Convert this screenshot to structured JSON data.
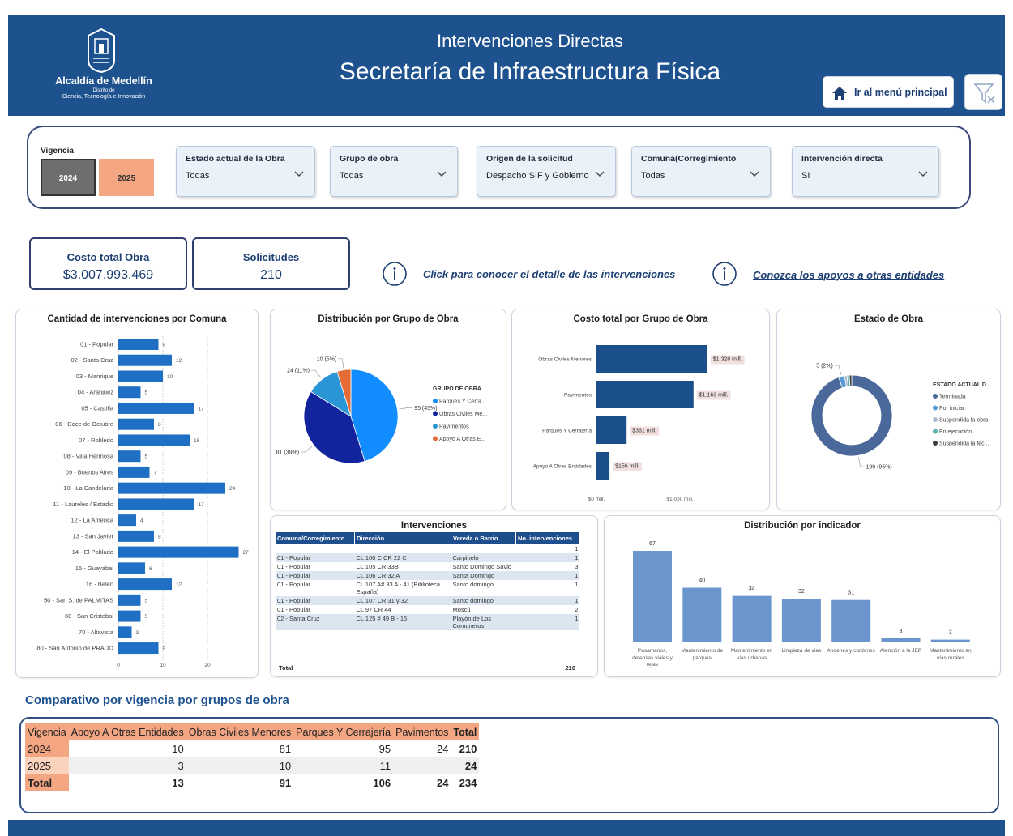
{
  "header": {
    "logo_title": "Alcaldía de Medellín",
    "logo_sub1": "Distrito de",
    "logo_sub2": "Ciencia, Tecnología e Innovación",
    "title": "Intervenciones Directas",
    "subtitle": "Secretaría de Infraestructura Física",
    "button": "Ir al menú principal"
  },
  "filters": {
    "vigencia": {
      "label": "Vigencia",
      "options": [
        "2024",
        "2025"
      ]
    },
    "dropdowns": [
      {
        "label": "Estado actual de la Obra",
        "selected": "Todas"
      },
      {
        "label": "Grupo de obra",
        "selected": "Todas"
      },
      {
        "label": "Origen de la solicitud",
        "selected": "Despacho SIF y Gobierno"
      },
      {
        "label": "Comuna(Corregimiento",
        "selected": "Todas"
      },
      {
        "label": "Intervención directa",
        "selected": "SI"
      }
    ]
  },
  "kpis": [
    {
      "label": "Costo total Obra",
      "value": "$3.007.993.469"
    },
    {
      "label": "Solicitudes",
      "value": "210"
    }
  ],
  "links": [
    "Click para conocer el detalle de las intervenciones",
    "Conozca los apoyos a otras entidades"
  ],
  "chart_data": [
    {
      "type": "bar",
      "horizontal": true,
      "title": "Cantidad de intervenciones por Comuna",
      "categories": [
        "01 - Popular",
        "02 - Santa Cruz",
        "03 - Manrique",
        "04 - Aranjuez",
        "05 - Castilla",
        "06 - Doce de Octubre",
        "07 - Robledo",
        "08 - Villa Hermosa",
        "09 - Buenos Aires",
        "10 - La Candelaria",
        "11 - Laureles / Estadio",
        "12 - La América",
        "13 - San Javier",
        "14 - El Poblado",
        "15 - Guayabal",
        "16 - Belén",
        "50 - San S. de PALMITAS",
        "60 - San Cristobal",
        "70 - Altavista",
        "80 - San Antonio de PRADO"
      ],
      "values": [
        9,
        12,
        10,
        5,
        17,
        8,
        16,
        5,
        7,
        24,
        17,
        4,
        8,
        27,
        6,
        12,
        5,
        5,
        3,
        9
      ],
      "color": "#1f6fc5",
      "xlim": [
        0,
        28
      ],
      "xticks": [
        0,
        10,
        20
      ],
      "grid": true
    },
    {
      "type": "pie",
      "title": "Distribución por Grupo de Obra",
      "legend_title": "GRUPO DE OBRA",
      "categories": [
        "Parques Y Cerra...",
        "Obras Civiles Me...",
        "Pavimentos",
        "Apoyo A Otras E..."
      ],
      "values": [
        95,
        81,
        24,
        10
      ],
      "value_labels": [
        "95 (45%)",
        "81 (39%)",
        "24 (11%)",
        "10 (5%)"
      ],
      "colors": [
        "#118dff",
        "#12239e",
        "#2b96d6",
        "#e66c37"
      ]
    },
    {
      "type": "bar",
      "horizontal": true,
      "title": "Costo total por Grupo de Obra",
      "categories": [
        "Obras Civiles Menores",
        "Pavimentos",
        "Parques Y Cerrajería",
        "Apoyo A Otras Entidades"
      ],
      "values": [
        1328,
        1163,
        361,
        156
      ],
      "value_labels": [
        "$1.328 mill.",
        "$1.163 mill.",
        "$361 mill.",
        "$156 mill."
      ],
      "color": "#1b4f8a",
      "xlim": [
        0,
        1500
      ],
      "xticks": [
        {
          "value": 0,
          "label": "$0 mill."
        },
        {
          "value": 1000,
          "label": "$1.000 mill."
        }
      ],
      "grid": false
    },
    {
      "type": "donut",
      "title": "Estado de Obra",
      "legend_title": "ESTADO ACTUAL D...",
      "categories": [
        "Terminada",
        "Por iniciar",
        "Suspendida la obra",
        "En ejecución",
        "Suspendida la fec..."
      ],
      "values": [
        199,
        5,
        2,
        2,
        2
      ],
      "value_labels": [
        "199 (95%)",
        "5 (2%)",
        null,
        null,
        null
      ],
      "colors": [
        "#4a6899",
        "#5b9bd5",
        "#a9bccf",
        "#5fb3b0",
        "#3b3b3b"
      ]
    },
    {
      "type": "bar",
      "horizontal": false,
      "title": "Distribución por indicador",
      "categories": [
        "Pasamanos, defensas viales y rejas",
        "Mantenimiento de parques",
        "Mantenimiento en vías urbanas",
        "Limpieza de vías",
        "Andenes y cordones",
        "Atención a la JEP",
        "Mantenimiento en vías rurales"
      ],
      "values": [
        67,
        40,
        34,
        32,
        31,
        3,
        2
      ],
      "color": "#6b96cd"
    }
  ],
  "table": {
    "title": "Intervenciones",
    "columns": [
      "Comuna/Corregimiento",
      "Dirección",
      "Vereda o Barrio",
      "No. intervenciones"
    ],
    "rows": [
      [
        null,
        null,
        null,
        1
      ],
      [
        "01 - Popular",
        "CL 100 C CR 22 C",
        "Carpinelo",
        1
      ],
      [
        "01 - Popular",
        "CL 105 CR 33B",
        "Santo Domingo Savio",
        3
      ],
      [
        "01 - Popular",
        "CL 106 CR 32 A",
        "Santa Domingo",
        1
      ],
      [
        "01 - Popular",
        "CL 107 A# 33 A - 41 (Biblioteca España)",
        "Santo domingo",
        1
      ],
      [
        "01 - Popular",
        "CL 107 CR 31 y 32",
        "Santo domingo",
        1
      ],
      [
        "01 - Popular",
        "CL 97 CR 44",
        "Moscú",
        2
      ],
      [
        "02 - Santa Cruz",
        "CL 125 # 49 B - 15",
        "Playón de Los Comuneros",
        1
      ]
    ],
    "total": {
      "label": "Total",
      "value": 210
    }
  },
  "matrix": {
    "title": "Comparativo por vigencia por grupos de obra",
    "columns": [
      "Vigencia",
      "Apoyo A Otras Entidades",
      "Obras Civiles Menores",
      "Parques Y Cerrajería",
      "Pavimentos",
      "Total"
    ],
    "rows": [
      [
        "2024",
        10,
        81,
        95,
        24,
        210
      ],
      [
        "2025",
        3,
        10,
        11,
        null,
        24
      ],
      [
        "Total",
        13,
        91,
        106,
        24,
        234
      ]
    ]
  }
}
